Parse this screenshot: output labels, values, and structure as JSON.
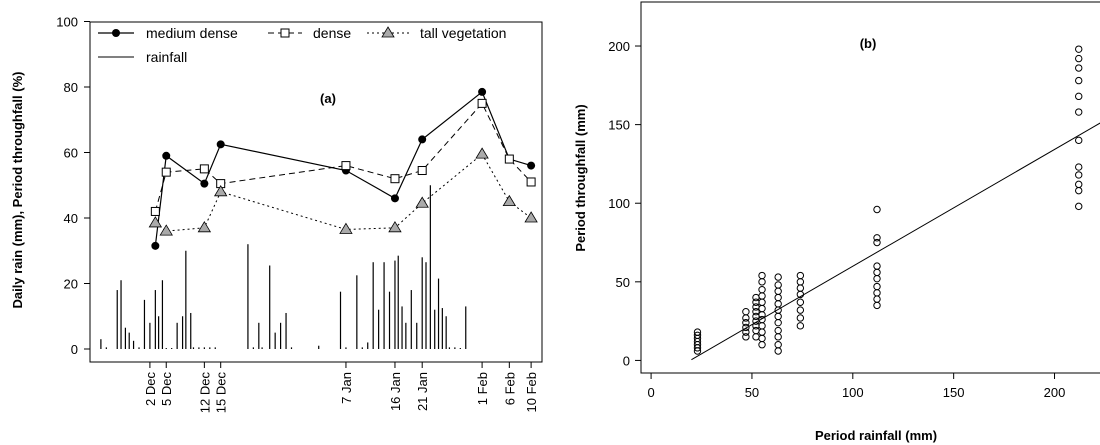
{
  "chart_data": [
    {
      "type": "line",
      "panel_label": "(a)",
      "ylabel": "Daily rain (mm), Period throughfall (%)",
      "ylim": [
        0,
        100
      ],
      "yticks": [
        0,
        20,
        40,
        60,
        80,
        100
      ],
      "xticks": [
        {
          "label": "2 Dec",
          "day": 2
        },
        {
          "label": "5 Dec",
          "day": 5
        },
        {
          "label": "12 Dec",
          "day": 12
        },
        {
          "label": "15 Dec",
          "day": 15
        },
        {
          "label": "7 Jan",
          "day": 38
        },
        {
          "label": "16 Jan",
          "day": 47
        },
        {
          "label": "21 Jan",
          "day": 52
        },
        {
          "label": "1 Feb",
          "day": 63
        },
        {
          "label": "6 Feb",
          "day": 68
        },
        {
          "label": "10 Feb",
          "day": 72
        }
      ],
      "legend": [
        {
          "name": "medium dense",
          "style": "solid",
          "marker": "filled-circle"
        },
        {
          "name": "dense",
          "style": "dashed",
          "marker": "open-square"
        },
        {
          "name": "tall vegetation",
          "style": "dotted",
          "marker": "grey-triangle"
        },
        {
          "name": "rainfall",
          "style": "solid",
          "marker": "none"
        }
      ],
      "series": [
        {
          "name": "medium dense",
          "points": [
            [
              3,
              31.5
            ],
            [
              5,
              59
            ],
            [
              12,
              50.5
            ],
            [
              15,
              62.5
            ],
            [
              38,
              54.5
            ],
            [
              47,
              46
            ],
            [
              52,
              64
            ],
            [
              63,
              78.5
            ],
            [
              68,
              58
            ],
            [
              72,
              56
            ]
          ]
        },
        {
          "name": "dense",
          "points": [
            [
              3,
              42
            ],
            [
              5,
              54
            ],
            [
              12,
              55
            ],
            [
              15,
              50.5
            ],
            [
              38,
              56
            ],
            [
              47,
              52
            ],
            [
              52,
              54.5
            ],
            [
              63,
              75
            ],
            [
              68,
              58
            ],
            [
              72,
              51
            ]
          ]
        },
        {
          "name": "tall vegetation",
          "points": [
            [
              3,
              38.5
            ],
            [
              5,
              36
            ],
            [
              12,
              37
            ],
            [
              15,
              48
            ],
            [
              38,
              36.5
            ],
            [
              47,
              37
            ],
            [
              52,
              44.5
            ],
            [
              63,
              59.5
            ],
            [
              68,
              45
            ],
            [
              72,
              40
            ]
          ]
        }
      ],
      "rainfall": [
        [
          -7,
          3
        ],
        [
          -6,
          0.5
        ],
        [
          -4,
          18
        ],
        [
          -3.3,
          21
        ],
        [
          -2.5,
          6.5
        ],
        [
          -1.8,
          5
        ],
        [
          -1,
          2.5
        ],
        [
          0,
          0.5
        ],
        [
          1,
          15
        ],
        [
          2,
          8
        ],
        [
          3,
          18
        ],
        [
          3.6,
          10
        ],
        [
          4.3,
          21
        ],
        [
          5,
          0
        ],
        [
          6,
          0
        ],
        [
          7,
          8
        ],
        [
          8,
          10
        ],
        [
          8.6,
          30
        ],
        [
          9.5,
          11
        ],
        [
          10,
          0.5
        ],
        [
          11,
          0.5
        ],
        [
          12,
          0.5
        ],
        [
          13,
          0.5
        ],
        [
          14,
          0.5
        ],
        [
          20,
          32
        ],
        [
          21,
          0.5
        ],
        [
          22,
          8
        ],
        [
          22.6,
          0.5
        ],
        [
          24,
          25.5
        ],
        [
          25,
          5
        ],
        [
          26,
          8
        ],
        [
          27,
          11
        ],
        [
          28,
          0.5
        ],
        [
          33,
          1
        ],
        [
          37,
          17.5
        ],
        [
          38,
          0.5
        ],
        [
          40,
          22.5
        ],
        [
          41,
          0.5
        ],
        [
          42,
          2
        ],
        [
          43,
          26.5
        ],
        [
          44,
          12
        ],
        [
          45,
          26.5
        ],
        [
          46,
          17.5
        ],
        [
          47,
          27
        ],
        [
          47.6,
          28.5
        ],
        [
          48.3,
          13
        ],
        [
          49,
          8
        ],
        [
          50,
          18
        ],
        [
          51,
          8
        ],
        [
          52,
          28
        ],
        [
          52.7,
          26.5
        ],
        [
          53.5,
          50
        ],
        [
          54.3,
          12
        ],
        [
          55,
          21.5
        ],
        [
          55.7,
          12.5
        ],
        [
          56.4,
          10
        ],
        [
          57,
          0.5
        ],
        [
          58,
          0.5
        ],
        [
          59,
          0
        ],
        [
          60,
          13
        ]
      ]
    },
    {
      "type": "scatter",
      "panel_label": "(b)",
      "xlabel": "Period rainfall (mm)",
      "ylabel": "Period throughfall (mm)",
      "xlim": [
        -5,
        228
      ],
      "ylim": [
        -8,
        228
      ],
      "xticks": [
        0,
        50,
        100,
        150,
        200
      ],
      "yticks": [
        0,
        50,
        100,
        150,
        200
      ],
      "regression": {
        "x": [
          20,
          228
        ],
        "y": [
          0.5,
          155
        ]
      },
      "points": [
        [
          23,
          6
        ],
        [
          23,
          8
        ],
        [
          23,
          10
        ],
        [
          23,
          12
        ],
        [
          23,
          14
        ],
        [
          23,
          16
        ],
        [
          23,
          18
        ],
        [
          47,
          15
        ],
        [
          47,
          18
        ],
        [
          47,
          21
        ],
        [
          47,
          24
        ],
        [
          47,
          27
        ],
        [
          47,
          31
        ],
        [
          52,
          15
        ],
        [
          52,
          19
        ],
        [
          52,
          22
        ],
        [
          52,
          25
        ],
        [
          52,
          28
        ],
        [
          52,
          31
        ],
        [
          52,
          34
        ],
        [
          52,
          37
        ],
        [
          52,
          40
        ],
        [
          55,
          10
        ],
        [
          55,
          14
        ],
        [
          55,
          18
        ],
        [
          55,
          22
        ],
        [
          55,
          26
        ],
        [
          55,
          29
        ],
        [
          55,
          33
        ],
        [
          55,
          37
        ],
        [
          55,
          41
        ],
        [
          55,
          45
        ],
        [
          55,
          50
        ],
        [
          55,
          54
        ],
        [
          63,
          6
        ],
        [
          63,
          10
        ],
        [
          63,
          15
        ],
        [
          63,
          19
        ],
        [
          63,
          24
        ],
        [
          63,
          28
        ],
        [
          63,
          32
        ],
        [
          63,
          36
        ],
        [
          63,
          40
        ],
        [
          63,
          44
        ],
        [
          63,
          48
        ],
        [
          63,
          53
        ],
        [
          74,
          22
        ],
        [
          74,
          27
        ],
        [
          74,
          32
        ],
        [
          74,
          37
        ],
        [
          74,
          42
        ],
        [
          74,
          46
        ],
        [
          74,
          50
        ],
        [
          74,
          54
        ],
        [
          112,
          35
        ],
        [
          112,
          39
        ],
        [
          112,
          43
        ],
        [
          112,
          47
        ],
        [
          112,
          52
        ],
        [
          112,
          56
        ],
        [
          112,
          60
        ],
        [
          112,
          75
        ],
        [
          112,
          78
        ],
        [
          112,
          96
        ],
        [
          212,
          98
        ],
        [
          212,
          108
        ],
        [
          212,
          112
        ],
        [
          212,
          118
        ],
        [
          212,
          123
        ],
        [
          212,
          140
        ],
        [
          212,
          158
        ],
        [
          212,
          168
        ],
        [
          212,
          178
        ],
        [
          212,
          186
        ],
        [
          212,
          192
        ],
        [
          212,
          198
        ]
      ]
    }
  ]
}
